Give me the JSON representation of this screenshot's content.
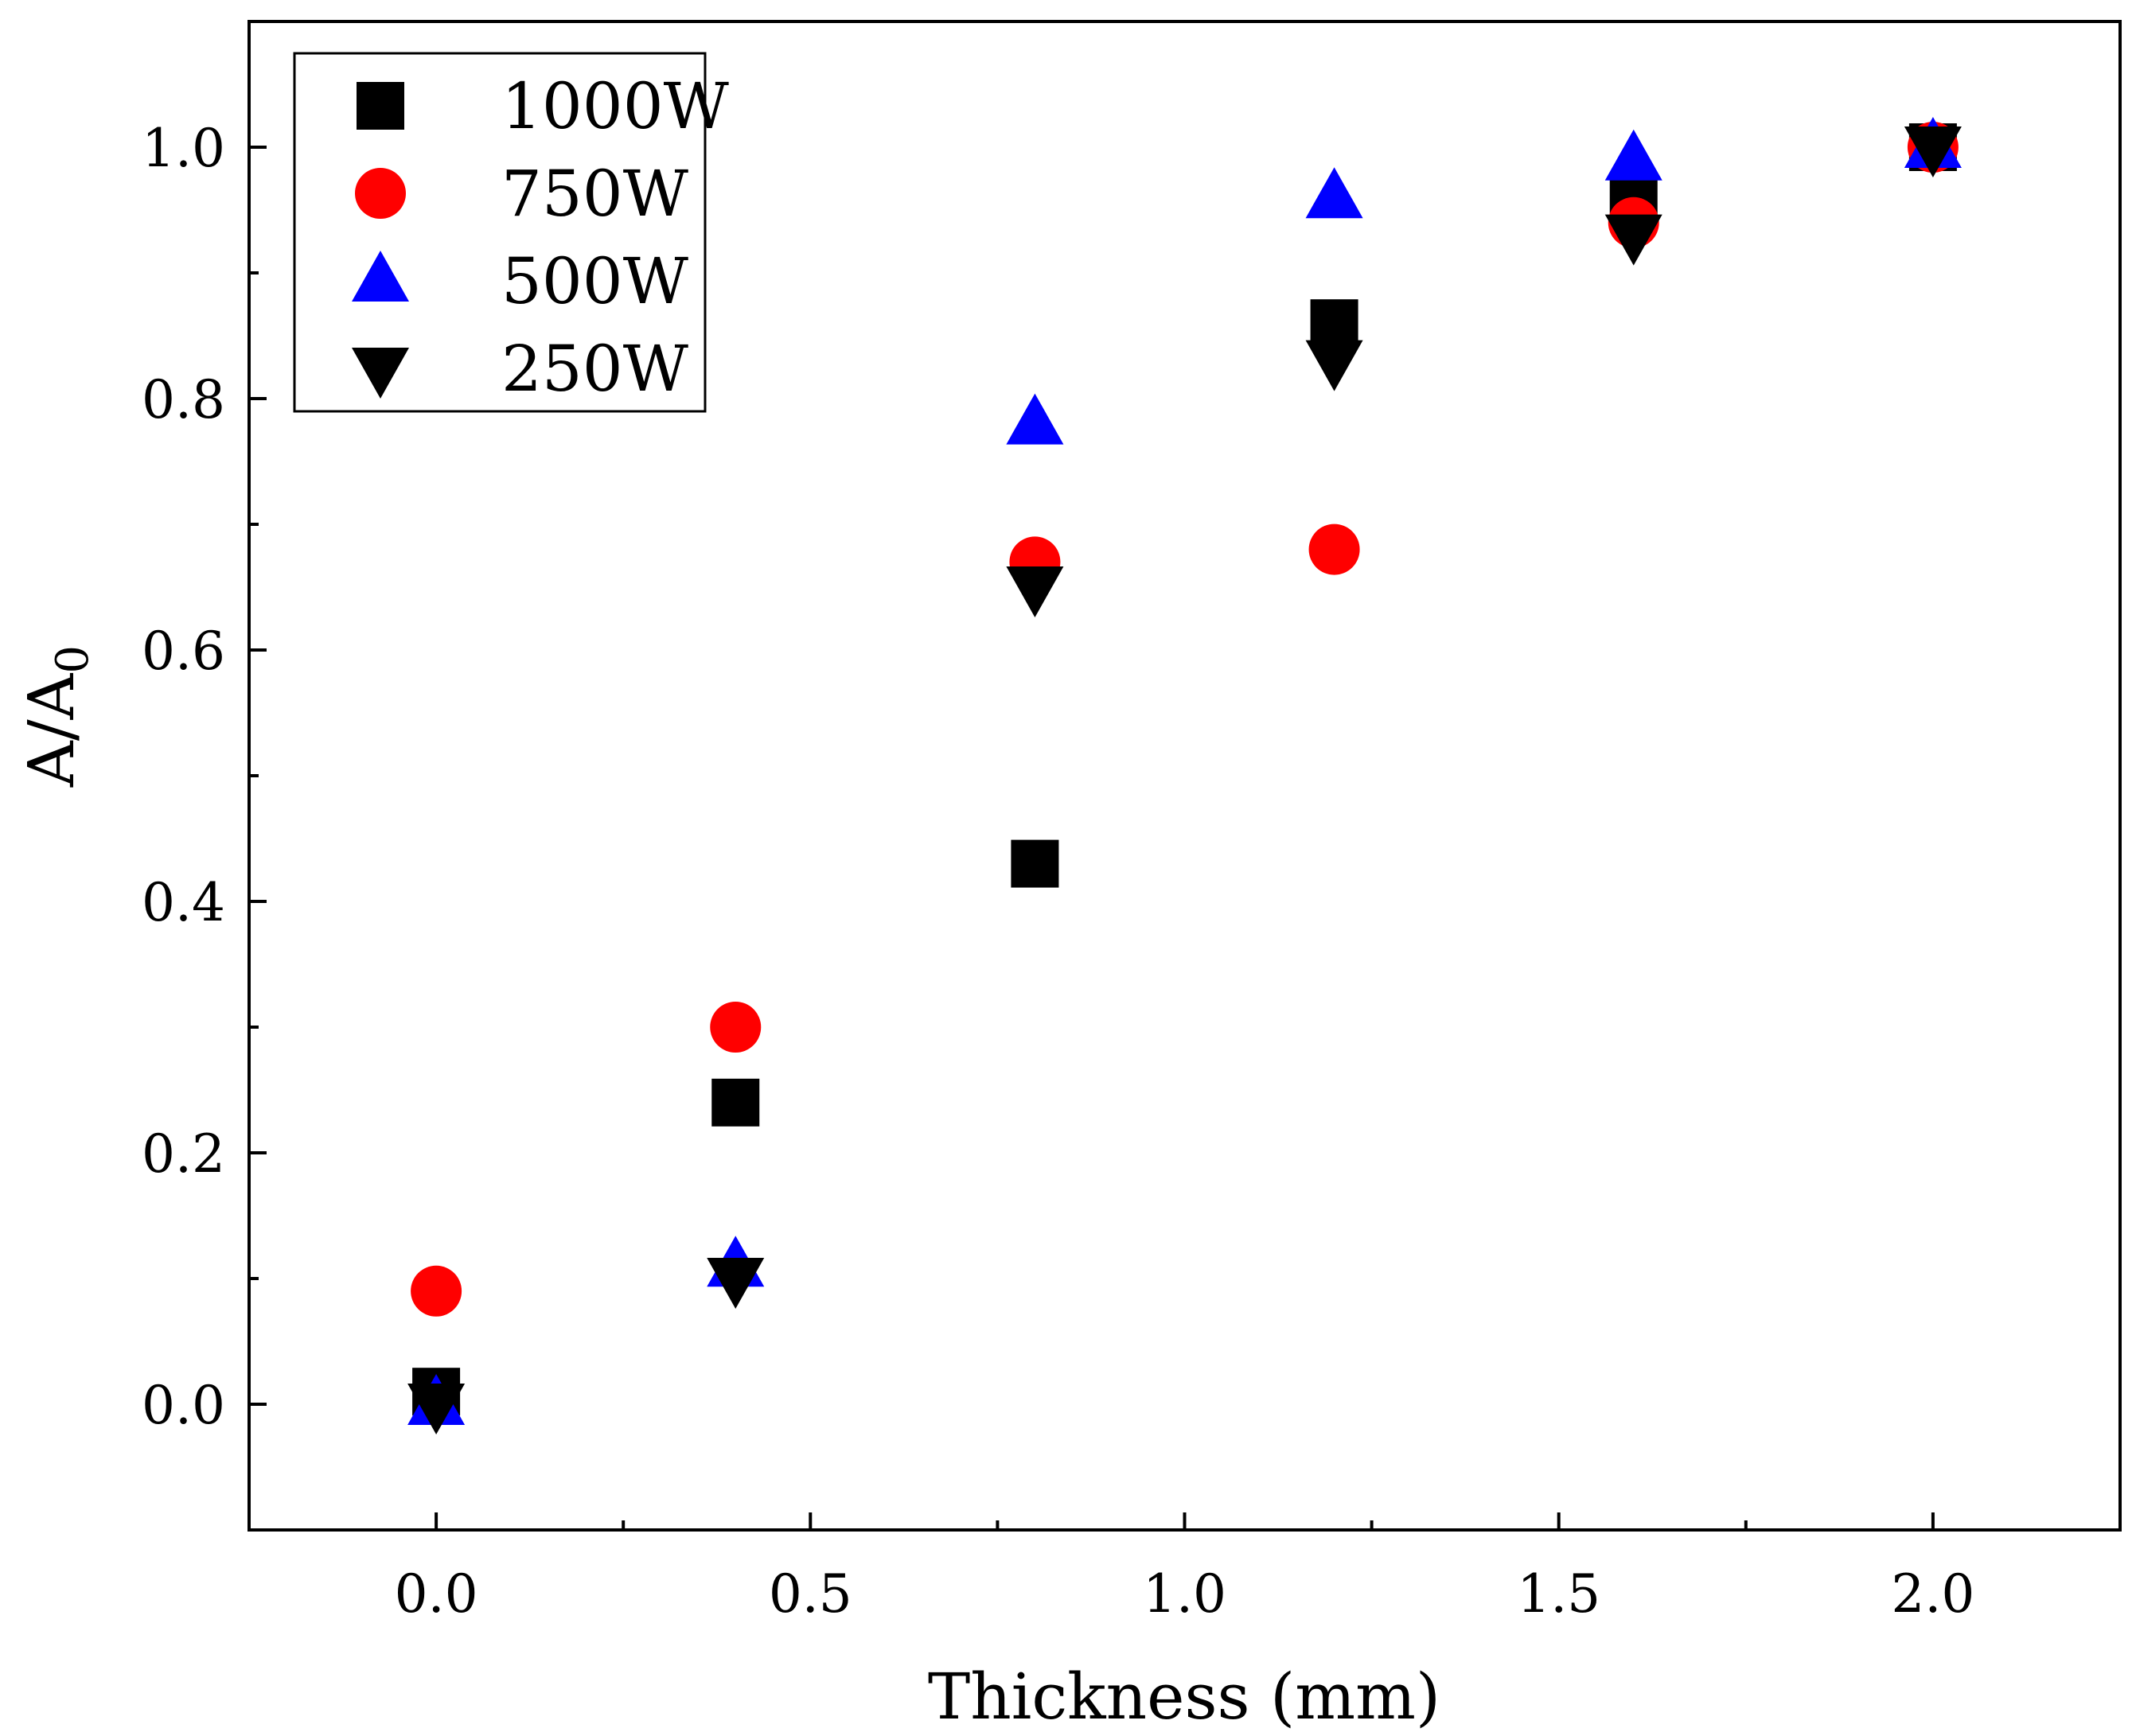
{
  "chart_data": {
    "type": "scatter",
    "title": "",
    "xlabel": "Thickness (mm)",
    "ylabel": "A/A",
    "ylabel_subscript": "0",
    "xlim": [
      -0.25,
      2.25
    ],
    "ylim": [
      -0.1,
      1.1
    ],
    "xticks": [
      0.0,
      0.5,
      1.0,
      1.5,
      2.0
    ],
    "xtick_labels": [
      "0.0",
      "0.5",
      "1.0",
      "1.5",
      "2.0"
    ],
    "yticks": [
      0.0,
      0.2,
      0.4,
      0.6,
      0.8,
      1.0
    ],
    "ytick_labels": [
      "0.0",
      "0.2",
      "0.4",
      "0.6",
      "0.8",
      "1.0"
    ],
    "legend_position": "top-left",
    "series": [
      {
        "name": "1000W",
        "marker": "square",
        "color": "#000000",
        "x": [
          0.0,
          0.4,
          0.8,
          1.2,
          1.6,
          2.0
        ],
        "y": [
          0.01,
          0.24,
          0.43,
          0.86,
          0.96,
          1.0
        ]
      },
      {
        "name": "750W",
        "marker": "circle",
        "color": "#ff0000",
        "x": [
          0.0,
          0.4,
          0.8,
          1.2,
          1.6,
          2.0
        ],
        "y": [
          0.09,
          0.3,
          0.67,
          0.68,
          0.94,
          1.0
        ]
      },
      {
        "name": "500W",
        "marker": "triangle-up",
        "color": "#0000ff",
        "x": [
          0.0,
          0.4,
          0.8,
          1.2,
          1.6,
          2.0
        ],
        "y": [
          0.0,
          0.11,
          0.78,
          0.96,
          0.99,
          1.0
        ]
      },
      {
        "name": "250W",
        "marker": "triangle-down",
        "color": "#000000",
        "x": [
          0.0,
          0.4,
          0.8,
          1.2,
          1.6,
          2.0
        ],
        "y": [
          0.0,
          0.1,
          0.65,
          0.83,
          0.93,
          1.0
        ]
      }
    ]
  }
}
